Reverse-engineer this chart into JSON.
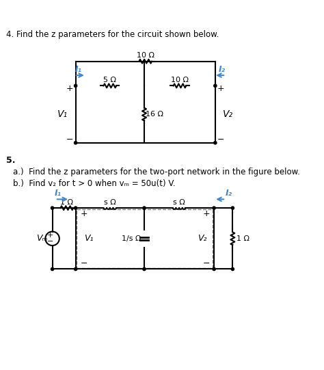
{
  "title4": "4. Find the z parameters for the circuit shown below.",
  "title5": "5.",
  "subtitle5a": "a.)  Find the z parameters for the two-port network in the figure below.",
  "subtitle5b": "b.)  Find v₂ for t > 0 when vₘ = 50u(t) V.",
  "bg_color": "#ffffff",
  "text_color": "#000000",
  "circuit1": {
    "top_resistor_label": "10 Ω",
    "mid_left_resistor_label": "5 Ω",
    "mid_right_resistor_label": "10 Ω",
    "shunt_resistor_label": "16 Ω",
    "I1_label": "I₁",
    "I2_label": "I₂",
    "V1_label": "V₁",
    "V2_label": "V₂"
  },
  "circuit2": {
    "series_resistor_label": "1 Ω",
    "left_inductor_label": "s Ω",
    "right_inductor_label": "s Ω",
    "shunt_cap_label": "1/s Ω",
    "load_resistor_label": "1 Ω",
    "source_label": "Vₘ",
    "I1_label": "I₁",
    "I2_label": "I₂",
    "V1_label": "V₁",
    "V2_label": "V₂"
  }
}
